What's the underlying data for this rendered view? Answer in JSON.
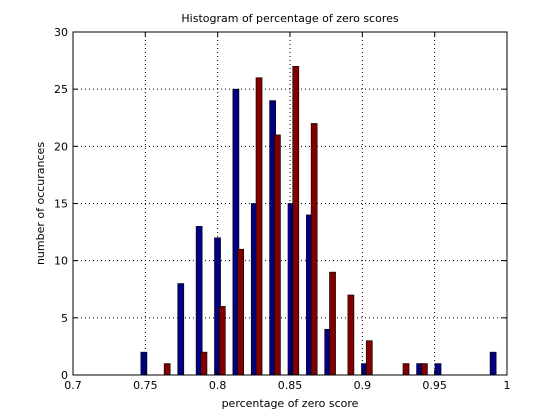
{
  "chart_data": {
    "type": "bar",
    "title": "Histogram of percentage of zero scores",
    "xlabel": "percentage of zero score",
    "ylabel": "number of occurances",
    "xlim": [
      0.7,
      1.0
    ],
    "ylim": [
      0,
      30
    ],
    "x_ticks": [
      0.7,
      0.75,
      0.8,
      0.85,
      0.9,
      0.95,
      1.0
    ],
    "x_tick_labels": [
      "0.7",
      "0.75",
      "0.8",
      "0.85",
      "0.9",
      "0.95",
      "1"
    ],
    "y_ticks": [
      0,
      5,
      10,
      15,
      20,
      25,
      30
    ],
    "y_tick_labels": [
      "0",
      "5",
      "10",
      "15",
      "20",
      "25",
      "30"
    ],
    "grid": true,
    "grid_style": "dotted",
    "bar_width": 0.0042,
    "series": [
      {
        "color": "#000080",
        "x": [
          0.749,
          0.7745,
          0.7872,
          0.7999,
          0.8126,
          0.8253,
          0.838,
          0.8507,
          0.8634,
          0.8761,
          0.9015,
          0.9396,
          0.9523,
          0.9904
        ],
        "values": [
          2,
          8,
          13,
          12,
          25,
          15,
          24,
          15,
          14,
          4,
          1,
          1,
          1,
          2
        ]
      },
      {
        "color": "#800000",
        "x": [
          0.7651,
          0.7905,
          0.8032,
          0.8159,
          0.8286,
          0.8413,
          0.854,
          0.8667,
          0.8794,
          0.8921,
          0.9048,
          0.9302,
          0.9429
        ],
        "values": [
          1,
          2,
          6,
          11,
          26,
          21,
          27,
          22,
          9,
          7,
          3,
          1,
          1
        ]
      }
    ]
  }
}
